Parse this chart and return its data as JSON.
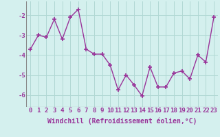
{
  "x": [
    0,
    1,
    2,
    3,
    4,
    5,
    6,
    7,
    8,
    9,
    10,
    11,
    12,
    13,
    14,
    15,
    16,
    17,
    18,
    19,
    20,
    21,
    22,
    23
  ],
  "y": [
    -3.7,
    -3.0,
    -3.1,
    -2.2,
    -3.2,
    -2.1,
    -1.7,
    -3.7,
    -3.95,
    -3.95,
    -4.5,
    -5.75,
    -5.0,
    -5.5,
    -6.05,
    -4.6,
    -5.6,
    -5.6,
    -4.9,
    -4.8,
    -5.2,
    -4.0,
    -4.35,
    -2.1
  ],
  "line_color": "#993399",
  "marker": "+",
  "marker_size": 4,
  "marker_lw": 1.2,
  "xlabel": "Windchill (Refroidissement éolien,°C)",
  "xlabel_fontsize": 7,
  "xtick_labels": [
    "0",
    "1",
    "2",
    "3",
    "4",
    "5",
    "6",
    "7",
    "8",
    "9",
    "10",
    "11",
    "12",
    "13",
    "14",
    "15",
    "16",
    "17",
    "18",
    "19",
    "20",
    "21",
    "22",
    "23"
  ],
  "ytick_values": [
    -6,
    -5,
    -4,
    -3,
    -2
  ],
  "ylim": [
    -6.6,
    -1.3
  ],
  "xlim": [
    -0.5,
    23.5
  ],
  "background_color": "#d4f0ee",
  "grid_color": "#b0d8d4",
  "tick_fontsize": 6.5,
  "line_width": 1.0
}
